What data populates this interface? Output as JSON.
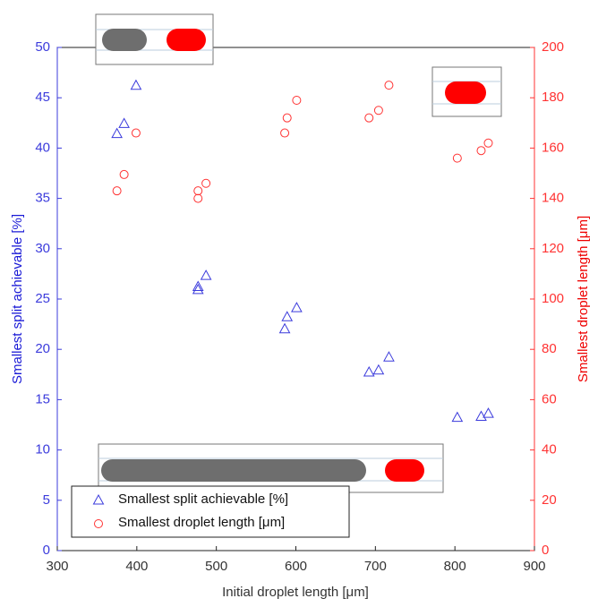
{
  "chart_data": {
    "type": "scatter",
    "x_label": "Initial droplet length [μm]",
    "y_label": "Smallest split achievable [%]",
    "y2_label": "Smallest droplet length [μm]",
    "xlim": [
      300,
      900
    ],
    "xticks": [
      300,
      400,
      500,
      600,
      700,
      800,
      900
    ],
    "ylim": [
      0,
      50
    ],
    "yticks": [
      0,
      5,
      10,
      15,
      20,
      25,
      30,
      35,
      40,
      45,
      50
    ],
    "y2lim": [
      0,
      200
    ],
    "y2ticks": [
      0,
      20,
      40,
      60,
      80,
      100,
      120,
      140,
      160,
      180,
      200
    ],
    "grid": false,
    "legend": "lower left",
    "series": [
      {
        "name": "Smallest split achievable [%]",
        "color": "#3b3bdc",
        "marker": "triangle",
        "x": [
          375,
          384,
          399,
          477,
          477,
          487,
          586,
          589,
          601,
          692,
          704,
          717,
          803,
          833,
          842
        ],
        "values": [
          41.4,
          42.4,
          46.2,
          26.2,
          25.9,
          27.3,
          22.0,
          23.2,
          24.1,
          17.7,
          17.9,
          19.2,
          13.2,
          13.3,
          13.6
        ]
      },
      {
        "name": "Smallest droplet length [μm]",
        "color": "#ff3333",
        "marker": "circle",
        "axis": "y2",
        "x": [
          375,
          384,
          399,
          477,
          477,
          487,
          586,
          589,
          601,
          692,
          704,
          717,
          803,
          833,
          842
        ],
        "values": [
          143,
          149.5,
          166,
          143,
          140,
          146,
          166,
          172,
          179,
          172,
          175,
          185,
          156,
          159,
          162
        ]
      }
    ]
  }
}
